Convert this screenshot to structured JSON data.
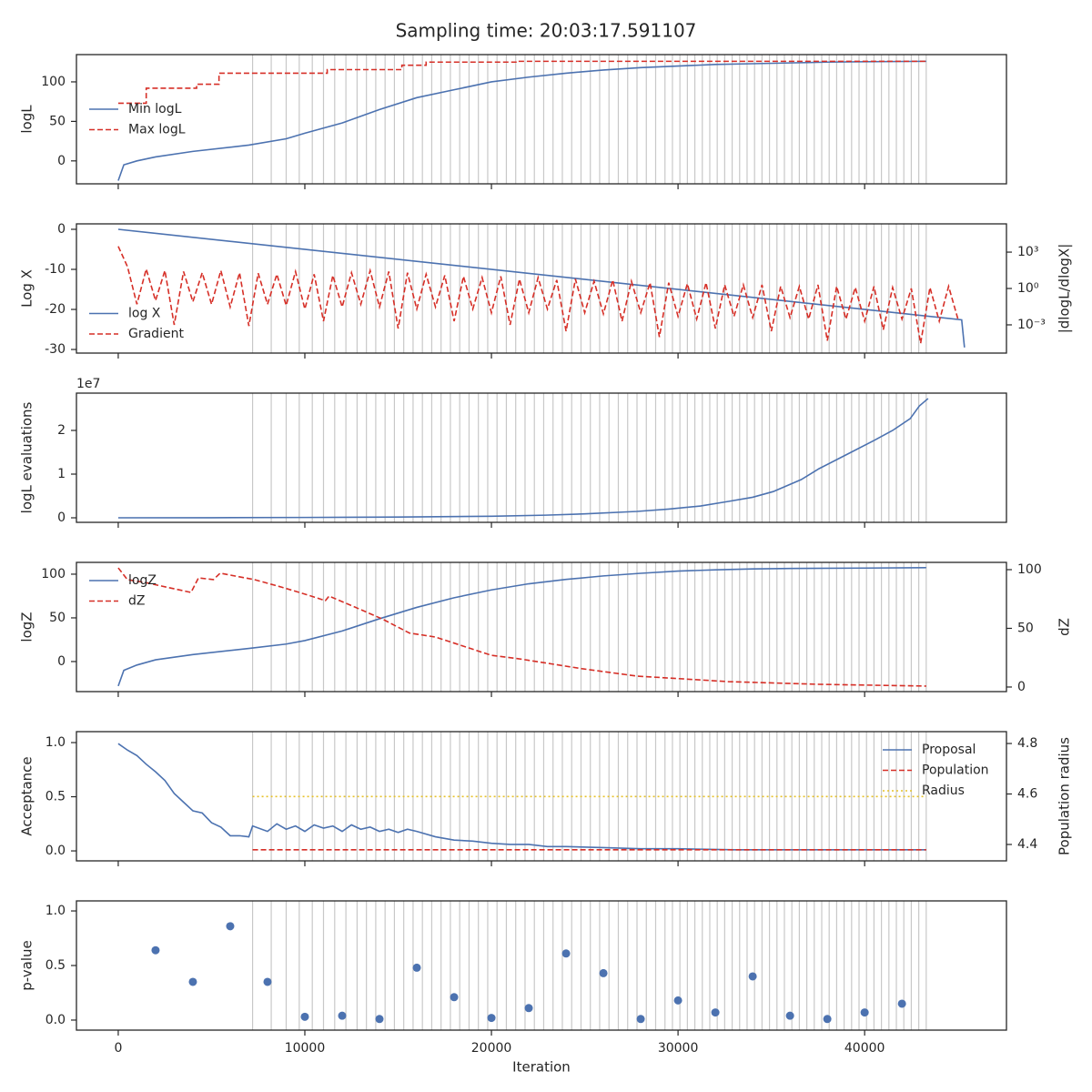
{
  "title": "Sampling time: 20:03:17.591107",
  "xlabel": "Iteration",
  "xlim": [
    -2240,
    47600
  ],
  "xticks": [
    0,
    10000,
    20000,
    30000,
    40000
  ],
  "markers": [
    7200,
    8200,
    9000,
    9700,
    10400,
    11000,
    11600,
    12200,
    12800,
    13300,
    13800,
    14300,
    14800,
    15300,
    15800,
    16300,
    16800,
    17300,
    17800,
    18300,
    18800,
    19300,
    19800,
    20300,
    20800,
    21300,
    21800,
    22300,
    22800,
    23300,
    23800,
    24300,
    24800,
    25300,
    25800,
    26300,
    26800,
    27300,
    27800,
    28300,
    28800,
    29300,
    29700,
    30100,
    30500,
    30900,
    31300,
    31700,
    32100,
    32500,
    32900,
    33300,
    33700,
    34100,
    34500,
    34900,
    35300,
    35700,
    36100,
    36500,
    36900,
    37300,
    37700,
    38100,
    38500,
    38900,
    39300,
    39700,
    40100,
    40500,
    40900,
    41300,
    41700,
    42100,
    42500,
    42900,
    43300
  ],
  "chart_data": [
    {
      "type": "line",
      "ylabel": "logL",
      "ylim": [
        -29,
        134.5
      ],
      "yticks": [
        0,
        50,
        100
      ],
      "legend": "center left",
      "series": [
        {
          "name": "Min logL",
          "color": "#4c72b0",
          "linestyle": "solid",
          "x": [
            0,
            300,
            1000,
            2000,
            4000,
            7000,
            9000,
            10000,
            12000,
            14000,
            16000,
            18000,
            20000,
            22000,
            24000,
            26000,
            28000,
            30000,
            32000,
            34000,
            36000,
            38000,
            40000,
            43300
          ],
          "values": [
            -25,
            -5,
            0,
            5,
            12,
            20,
            28,
            35,
            48,
            65,
            80,
            90,
            100,
            106,
            111,
            115,
            118,
            120,
            122,
            123,
            124,
            125,
            125.5,
            126
          ]
        },
        {
          "name": "Max logL",
          "color": "#d62f27",
          "linestyle": "dashed",
          "x": [
            0,
            1500,
            1500,
            4200,
            4200,
            5400,
            5400,
            11200,
            11200,
            15200,
            15200,
            16500,
            16500,
            21400,
            21400,
            43300
          ],
          "values": [
            73,
            73,
            92,
            92,
            97,
            97,
            111,
            111,
            115.5,
            115.5,
            121,
            121,
            125,
            125,
            126,
            126
          ]
        }
      ]
    },
    {
      "type": "line",
      "ylabel": "Log X",
      "ylim": [
        -30.9,
        1.36
      ],
      "yticks": [
        -30,
        -20,
        -10,
        0
      ],
      "y2label": "|dlogL/dlogX|",
      "y2lim": [
        4.7e-06,
        214000
      ],
      "y2log": true,
      "y2ticks": [
        {
          "value": 0.001,
          "label": "10⁻³"
        },
        {
          "value": 1,
          "label": "10⁰"
        },
        {
          "value": 1000,
          "label": "10³"
        }
      ],
      "legend": "lower left",
      "series": [
        {
          "name": "log X",
          "color": "#4c72b0",
          "linestyle": "solid",
          "x": [
            0,
            45200,
            45350
          ],
          "values": [
            0,
            -22.6,
            -29.5
          ]
        },
        {
          "name": "Gradient",
          "color": "#d62f27",
          "linestyle": "dashed",
          "axis": "y2",
          "x": [
            0,
            500,
            1000,
            1500,
            2000,
            2500,
            3000,
            3500,
            4000,
            4500,
            5000,
            5500,
            6000,
            6500,
            7000,
            7500,
            8000,
            8500,
            9000,
            9500,
            10000,
            10500,
            11000,
            11500,
            12000,
            12500,
            13000,
            13500,
            14000,
            14500,
            15000,
            15500,
            16000,
            16500,
            17000,
            17500,
            18000,
            18500,
            19000,
            19500,
            20000,
            20500,
            21000,
            21500,
            22000,
            22500,
            23000,
            23500,
            24000,
            24500,
            25000,
            25500,
            26000,
            26500,
            27000,
            27500,
            28000,
            28500,
            29000,
            29500,
            30000,
            30500,
            31000,
            31500,
            32000,
            32500,
            33000,
            33500,
            34000,
            34500,
            35000,
            35500,
            36000,
            36500,
            37000,
            37500,
            38000,
            38500,
            39000,
            39500,
            40000,
            40500,
            41000,
            41500,
            42000,
            42500,
            43000,
            43500,
            44000,
            44500,
            45000
          ],
          "values": [
            3000,
            60,
            0.05,
            40,
            0.1,
            30,
            0.001,
            25,
            0.08,
            20,
            0.05,
            30,
            0.03,
            20,
            0.0008,
            18,
            0.05,
            15,
            0.04,
            25,
            0.02,
            15,
            0.002,
            12,
            0.03,
            20,
            0.05,
            30,
            0.03,
            25,
            0.0005,
            20,
            0.02,
            15,
            0.03,
            12,
            0.002,
            10,
            0.02,
            8,
            0.01,
            10,
            0.001,
            6,
            0.01,
            8,
            0.02,
            5,
            0.0003,
            6,
            0.01,
            4,
            0.008,
            5,
            0.002,
            4,
            0.01,
            3,
            0.0001,
            3,
            0.005,
            2.5,
            0.003,
            3,
            0.0005,
            2,
            0.005,
            2,
            0.004,
            2,
            0.0003,
            1.5,
            0.004,
            1.5,
            0.003,
            2,
            5e-05,
            1.5,
            0.003,
            1.2,
            0.002,
            1.5,
            0.0004,
            1.2,
            0.003,
            1,
            3e-05,
            1.2,
            0.002,
            1.5,
            0.003
          ]
        }
      ]
    },
    {
      "type": "line",
      "ylabel": "logL evaluations",
      "ylim": [
        -1040000,
        28540000
      ],
      "yticks": [
        0,
        {
          "value": 10000000,
          "label": "1"
        },
        {
          "value": 20000000,
          "label": "2"
        }
      ],
      "y_offset_text": "1e7",
      "color": "#4c72b0",
      "x": [
        0,
        5000,
        10000,
        15000,
        20000,
        22900,
        25000,
        27800,
        29500,
        31200,
        32700,
        34000,
        35100,
        36600,
        37560,
        39000,
        40500,
        41500,
        42440,
        42930,
        43400
      ],
      "values": [
        0,
        20000,
        80000,
        180000,
        350000,
        600000,
        900000,
        1460000,
        2000000,
        2700000,
        3750000,
        4700000,
        6000000,
        8750000,
        11250000,
        14400000,
        17700000,
        20000000,
        22700000,
        25600000,
        27300000
      ]
    },
    {
      "type": "line",
      "ylabel": "logZ",
      "ylim": [
        -34.4,
        113.5
      ],
      "yticks": [
        0,
        50,
        100
      ],
      "y2label": "dZ",
      "y2lim": [
        -3.9,
        106.2
      ],
      "y2ticks": [
        0,
        50,
        100
      ],
      "legend": "upper left",
      "series": [
        {
          "name": "logZ",
          "color": "#4c72b0",
          "linestyle": "solid",
          "x": [
            0,
            300,
            1000,
            2000,
            4000,
            7000,
            9000,
            10000,
            12000,
            14000,
            16000,
            18000,
            20000,
            22000,
            24000,
            26000,
            28000,
            30000,
            32000,
            34000,
            36000,
            40000,
            43300
          ],
          "values": [
            -28,
            -10,
            -4,
            2,
            8,
            15,
            20,
            24,
            35,
            49,
            62,
            73,
            82,
            89,
            94,
            98,
            101,
            103.5,
            105,
            106,
            106.5,
            107,
            107.5
          ]
        },
        {
          "name": "dZ",
          "color": "#d62f27",
          "linestyle": "dashed",
          "axis": "y2",
          "x": [
            0,
            490,
            1460,
            3900,
            4300,
            5100,
            5460,
            7300,
            8780,
            10240,
            11100,
            11300,
            12700,
            14150,
            15600,
            17000,
            20000,
            21500,
            24900,
            27800,
            32700,
            37560,
            43300
          ],
          "values": [
            101.5,
            91.5,
            89,
            80.6,
            93,
            91.5,
            97,
            91.5,
            85,
            78,
            73.6,
            77.5,
            68,
            58,
            46,
            42.6,
            27,
            24,
            15.5,
            9.3,
            4.6,
            2.3,
            0.8
          ]
        }
      ]
    },
    {
      "type": "line",
      "ylabel": "Acceptance",
      "ylim": [
        -0.092,
        1.101
      ],
      "yticks": [
        {
          "value": 0,
          "label": "0.0"
        },
        0.5,
        {
          "value": 1,
          "label": "1.0"
        }
      ],
      "y2label": "Population radius",
      "y2lim": [
        4.335,
        4.847
      ],
      "y2ticks": [
        4.4,
        4.6,
        4.8
      ],
      "legend": "upper right",
      "series": [
        {
          "name": "Proposal",
          "color": "#4c72b0",
          "linestyle": "solid",
          "x": [
            0,
            500,
            1000,
            1500,
            2000,
            2500,
            3000,
            3500,
            4000,
            4500,
            5000,
            5500,
            6000,
            6500,
            7000,
            7200,
            8000,
            8500,
            9000,
            9500,
            10000,
            10500,
            11000,
            11500,
            12000,
            12500,
            13000,
            13500,
            14000,
            14500,
            15000,
            15500,
            16000,
            17000,
            18000,
            19000,
            20000,
            21000,
            22000,
            23000,
            24000,
            26000,
            28000,
            30000,
            33000,
            36000,
            40000,
            43300
          ],
          "values": [
            0.99,
            0.93,
            0.88,
            0.8,
            0.73,
            0.65,
            0.53,
            0.45,
            0.37,
            0.35,
            0.26,
            0.22,
            0.14,
            0.14,
            0.13,
            0.23,
            0.18,
            0.25,
            0.2,
            0.23,
            0.18,
            0.24,
            0.21,
            0.23,
            0.18,
            0.24,
            0.2,
            0.22,
            0.18,
            0.2,
            0.17,
            0.2,
            0.18,
            0.13,
            0.1,
            0.09,
            0.07,
            0.06,
            0.06,
            0.04,
            0.04,
            0.03,
            0.02,
            0.02,
            0.01,
            0.01,
            0.01,
            0.01
          ]
        },
        {
          "name": "Population",
          "color": "#d62f27",
          "linestyle": "dashed",
          "x": [
            7200,
            43300
          ],
          "values": [
            0.01,
            0.01
          ]
        },
        {
          "name": "Radius",
          "color": "#e6c229",
          "linestyle": "dotted",
          "axis": "y2",
          "x": [
            7200,
            43300
          ],
          "values": [
            4.59,
            4.59
          ]
        }
      ]
    },
    {
      "type": "scatter",
      "ylabel": "p-value",
      "ylim": [
        -0.092,
        1.092
      ],
      "yticks": [
        {
          "value": 0,
          "label": "0.0"
        },
        0.5,
        {
          "value": 1,
          "label": "1.0"
        }
      ],
      "color": "#4c72b0",
      "x": [
        2000,
        4000,
        6000,
        8000,
        10000,
        12000,
        14000,
        16000,
        18000,
        20000,
        22000,
        24000,
        26000,
        28000,
        30000,
        32000,
        34000,
        36000,
        38000,
        40000,
        42000
      ],
      "values": [
        0.64,
        0.35,
        0.86,
        0.35,
        0.03,
        0.04,
        0.01,
        0.48,
        0.21,
        0.02,
        0.11,
        0.61,
        0.43,
        0.01,
        0.18,
        0.07,
        0.4,
        0.04,
        0.01,
        0.07,
        0.15
      ]
    }
  ]
}
